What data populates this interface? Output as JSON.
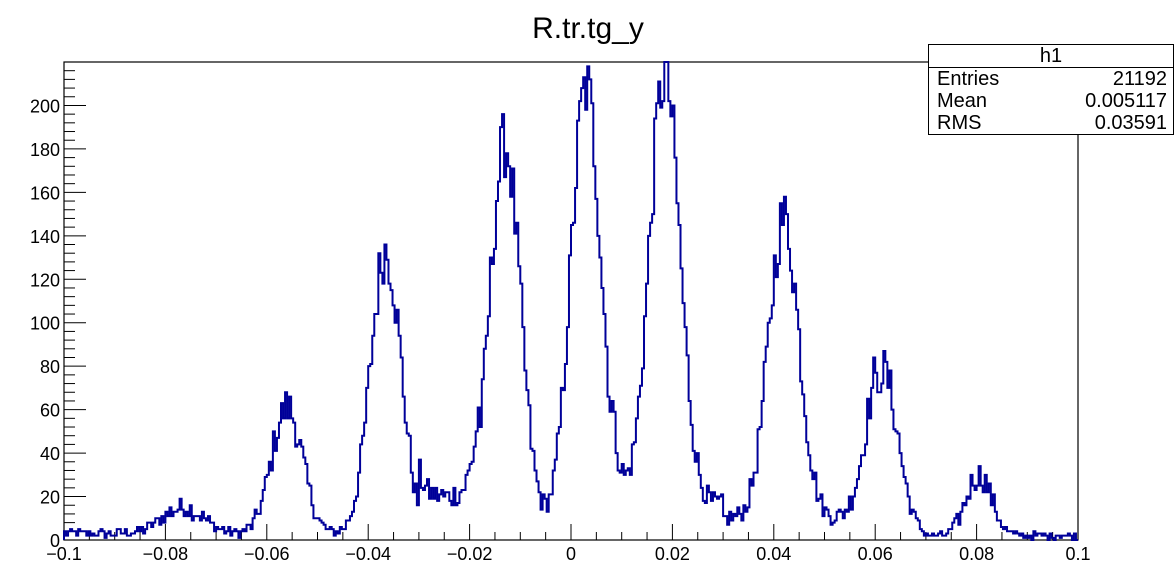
{
  "chart_data": {
    "type": "histogram",
    "title": "R.tr.tg_y",
    "xlim": [
      -0.1,
      0.1
    ],
    "ylim": [
      0,
      220
    ],
    "xticks": [
      "−0.1",
      "−0.08",
      "−0.06",
      "−0.04",
      "−0.02",
      "0",
      "0.02",
      "0.04",
      "0.06",
      "0.08",
      "0.1"
    ],
    "yticks": [
      "0",
      "20",
      "40",
      "60",
      "80",
      "100",
      "120",
      "140",
      "160",
      "180",
      "200"
    ],
    "line_color": "#000099",
    "peaks": [
      {
        "center": -0.0765,
        "height": 12,
        "width": 0.004
      },
      {
        "center": -0.056,
        "height": 58,
        "width": 0.003
      },
      {
        "center": -0.0365,
        "height": 130,
        "width": 0.003
      },
      {
        "center": -0.013,
        "height": 176,
        "width": 0.003
      },
      {
        "center": 0.003,
        "height": 202,
        "width": 0.003
      },
      {
        "center": 0.0185,
        "height": 198,
        "width": 0.003
      },
      {
        "center": 0.042,
        "height": 138,
        "width": 0.003
      },
      {
        "center": 0.0615,
        "height": 76,
        "width": 0.003
      },
      {
        "center": 0.0805,
        "height": 28,
        "width": 0.0025
      }
    ],
    "background_segments": [
      {
        "x": [
          -0.1,
          -0.03
        ],
        "y": 3
      },
      {
        "x": [
          -0.03,
          -0.018
        ],
        "y": 20
      },
      {
        "x": [
          -0.018,
          0.008
        ],
        "y": 6
      },
      {
        "x": [
          0.008,
          0.03
        ],
        "y": 16
      },
      {
        "x": [
          0.03,
          0.06
        ],
        "y": 10
      },
      {
        "x": [
          0.06,
          0.1
        ],
        "y": 2
      }
    ],
    "stats_box": {
      "name": "h1",
      "rows": [
        {
          "label": "Entries",
          "value": "21192"
        },
        {
          "label": "Mean",
          "value": "0.005117"
        },
        {
          "label": "RMS",
          "value": "0.03591"
        }
      ]
    }
  }
}
